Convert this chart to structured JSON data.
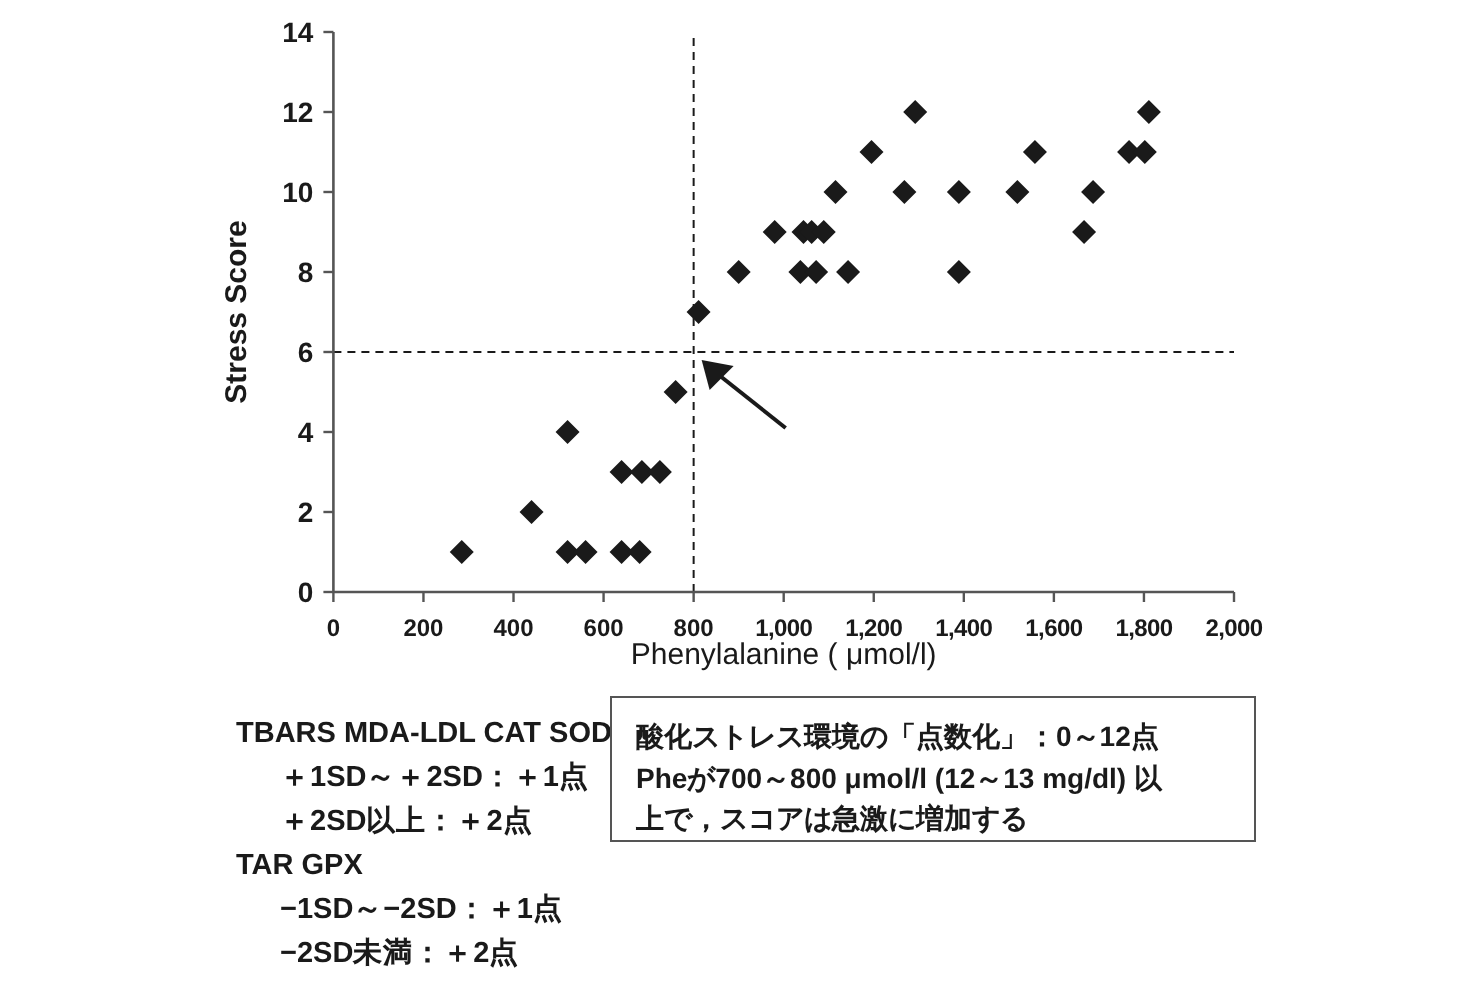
{
  "chart_data": {
    "type": "scatter",
    "xlabel": "Phenylalanine ( μmol/l)",
    "ylabel": "Stress Score",
    "series": [
      {
        "color": "#1a1a1a",
        "marker": "diamond",
        "x": [
          285,
          440,
          520,
          520,
          560,
          640,
          640,
          680,
          685,
          725,
          760,
          811,
          900,
          980,
          1037,
          1044,
          1062,
          1072,
          1089,
          1115,
          1143,
          1195,
          1268,
          1292,
          1389,
          1389,
          1519,
          1558,
          1667,
          1687,
          1767,
          1802,
          1811
        ],
        "values": [
          1,
          2,
          4,
          1,
          1,
          3,
          1,
          1,
          3,
          3,
          5,
          7,
          8,
          9,
          8,
          9,
          9,
          8,
          9,
          10,
          8,
          11,
          10,
          12,
          10,
          8,
          10,
          11,
          9,
          10,
          11,
          11,
          12
        ]
      }
    ],
    "xlim": [
      0,
      2000
    ],
    "ylim": [
      0,
      14
    ],
    "xticks": [
      0,
      200,
      400,
      600,
      800,
      {
        "value": 1000,
        "label": "1,000"
      },
      {
        "value": 1200,
        "label": "1,200"
      },
      {
        "value": 1400,
        "label": "1,400"
      },
      {
        "value": 1600,
        "label": "1,600"
      },
      {
        "value": 1800,
        "label": "1,800"
      },
      {
        "value": 2000,
        "label": "2,000"
      }
    ],
    "yticks": [
      0,
      2,
      4,
      6,
      8,
      10,
      12,
      14
    ],
    "grid": false,
    "ref_lines": [
      {
        "axis": "x",
        "value": 800,
        "line_style": "dashed",
        "color": "#1a1a1a"
      },
      {
        "axis": "y",
        "value": 6,
        "line_style": "dashed",
        "color": "#1a1a1a"
      }
    ],
    "annotations": [
      "TBARS MDA-LDL CAT SOD",
      "＋1SD～＋2SD：＋1点",
      "＋2SD以上：＋2点",
      "TAR GPX",
      "−1SD～−2SD：＋1点",
      "−2SD未満：＋2点",
      "酸化ストレス環境の「点数化」：0～12点",
      "Pheが700～800 μmol/l (12～13 mg/dl) 以",
      "上で，スコアは急激に増加する"
    ]
  }
}
